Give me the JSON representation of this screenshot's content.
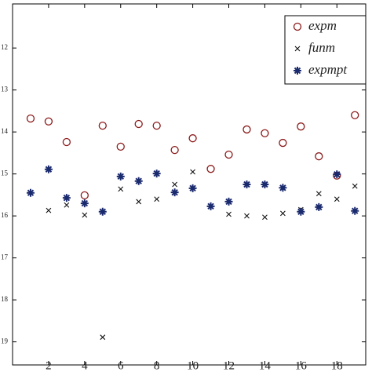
{
  "chart_data": {
    "type": "scatter",
    "x": [
      1,
      2,
      3,
      4,
      5,
      6,
      7,
      8,
      9,
      10,
      11,
      12,
      13,
      14,
      15,
      16,
      17,
      18,
      19
    ],
    "series": [
      {
        "name": "expm",
        "color": "#8b1a1a",
        "marker": "circle",
        "values": [
          13.68,
          13.75,
          14.24,
          15.51,
          13.85,
          14.35,
          13.81,
          13.85,
          14.43,
          14.15,
          14.88,
          14.54,
          13.94,
          14.03,
          14.26,
          13.87,
          14.58,
          15.04,
          13.6
        ]
      },
      {
        "name": "funm",
        "color": "#111111",
        "marker": "x",
        "values": [
          null,
          15.87,
          15.74,
          15.98,
          18.89,
          15.36,
          15.66,
          15.6,
          15.25,
          14.95,
          15.77,
          15.96,
          16.0,
          16.03,
          15.94,
          15.85,
          15.47,
          15.6,
          15.29
        ]
      },
      {
        "name": "expmpt",
        "color": "#1a2a6e",
        "marker": "star",
        "values": [
          15.45,
          14.89,
          15.57,
          15.7,
          15.9,
          15.06,
          15.17,
          14.99,
          15.44,
          15.34,
          15.77,
          15.66,
          15.25,
          15.25,
          15.33,
          15.9,
          15.79,
          15.01,
          15.88
        ]
      }
    ],
    "xlim": [
      0,
      19.6
    ],
    "xticks": [
      2,
      4,
      6,
      8,
      10,
      12,
      14,
      16,
      18
    ],
    "ylim": [
      10.95,
      19.55
    ],
    "yticks": [
      12,
      13,
      14,
      15,
      16,
      17,
      18,
      19
    ],
    "y_inverted": true,
    "legend": "top-right"
  }
}
